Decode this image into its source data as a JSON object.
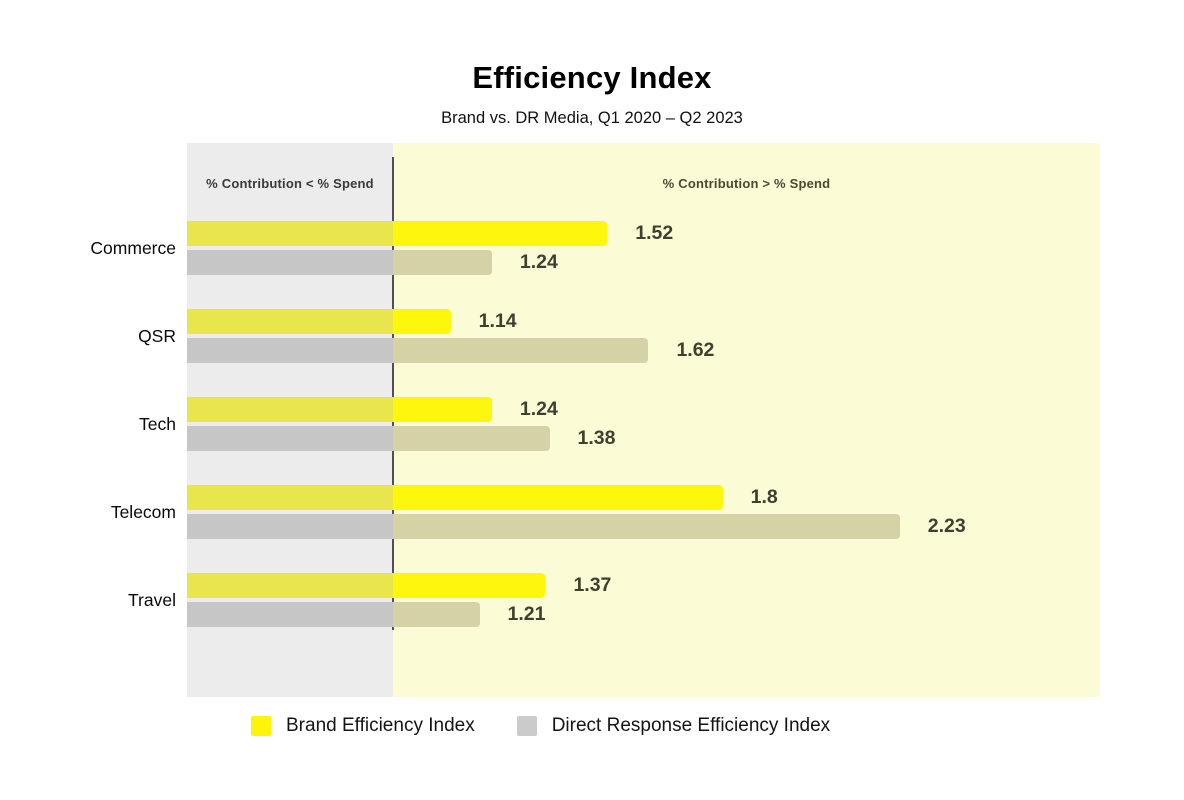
{
  "chart": {
    "title": "Efficiency Index",
    "subtitle": "Brand vs. DR Media, Q1 2020 – Q2 2023",
    "left_region_label": "% Contribution < % Spend",
    "right_region_label": "% Contribution > % Spend"
  },
  "chart_data": {
    "type": "bar",
    "orientation": "horizontal",
    "title": "Efficiency Index",
    "subtitle": "Brand vs. DR Media, Q1 2020 – Q2 2023",
    "categories": [
      "Commerce",
      "QSR",
      "Tech",
      "Telecom",
      "Travel"
    ],
    "series": [
      {
        "name": "Brand Efficiency Index",
        "values": [
          1.52,
          1.14,
          1.24,
          1.8,
          1.37
        ]
      },
      {
        "name": "Direct Response Efficiency Index",
        "values": [
          1.24,
          1.62,
          1.38,
          2.23,
          1.21
        ]
      }
    ],
    "xlim": [
      0.5,
      2.72
    ],
    "parity_line": 1.0,
    "annotations": [
      "% Contribution < % Spend",
      "% Contribution > % Spend"
    ],
    "grid": false,
    "legend_position": "bottom",
    "value_labels_shown": true
  },
  "legend": {
    "items": [
      {
        "label": "Brand Efficiency Index",
        "color": "#FCF40A"
      },
      {
        "label": "Direct Response Efficiency Index",
        "color": "#CBCBCB"
      }
    ]
  },
  "colors": {
    "brand": "#FCF70D",
    "brand_muted": "#E9E54D",
    "dr": "#C6C6C6",
    "dr_tinted": "#D5D3A6",
    "left_panel": "#ECECEC",
    "right_panel": "#FBFBD6",
    "divider": "#515155",
    "value_text": "#3F3F30",
    "left_label_text": "#3A3A3A",
    "right_label_text": "#4A4A33"
  }
}
